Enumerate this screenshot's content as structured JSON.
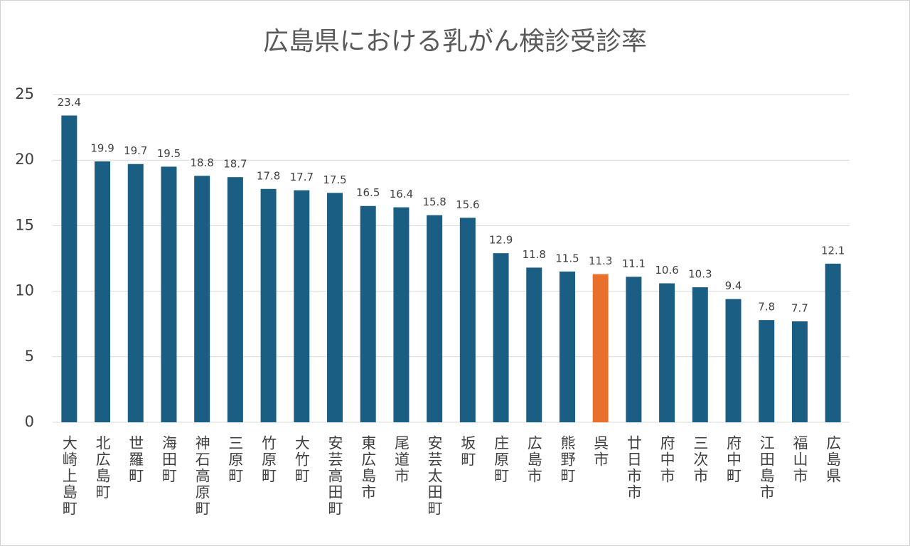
{
  "chart_data": {
    "type": "bar",
    "title": "広島県における乳がん検診受診率",
    "categories": [
      "大崎上島町",
      "北広島町",
      "世羅町",
      "海田町",
      "神石高原町",
      "三原町",
      "竹原町",
      "大竹町",
      "安芸高田町",
      "東広島市",
      "尾道市",
      "安芸太田町",
      "坂町",
      "庄原町",
      "広島市",
      "熊野町",
      "呉市",
      "廿日市市",
      "府中市",
      "三次市",
      "府中町",
      "江田島市",
      "福山市",
      "広島県"
    ],
    "values": [
      23.4,
      19.9,
      19.7,
      19.5,
      18.8,
      18.7,
      17.8,
      17.7,
      17.5,
      16.5,
      16.4,
      15.8,
      15.6,
      12.9,
      11.8,
      11.5,
      11.3,
      11.1,
      10.6,
      10.3,
      9.4,
      7.8,
      7.7,
      12.1
    ],
    "colors": [
      "#1b5e84",
      "#1b5e84",
      "#1b5e84",
      "#1b5e84",
      "#1b5e84",
      "#1b5e84",
      "#1b5e84",
      "#1b5e84",
      "#1b5e84",
      "#1b5e84",
      "#1b5e84",
      "#1b5e84",
      "#1b5e84",
      "#1b5e84",
      "#1b5e84",
      "#1b5e84",
      "#e8702a",
      "#1b5e84",
      "#1b5e84",
      "#1b5e84",
      "#1b5e84",
      "#1b5e84",
      "#1b5e84",
      "#1b5e84"
    ],
    "ylim": [
      0,
      25
    ],
    "yticks": [
      0,
      5,
      10,
      15,
      20,
      25
    ],
    "grid": true
  }
}
